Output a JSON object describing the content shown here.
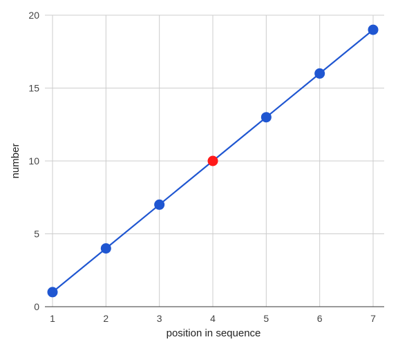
{
  "chart_data": {
    "type": "line",
    "xlabel": "position in sequence",
    "ylabel": "number",
    "x": [
      1,
      2,
      3,
      4,
      5,
      6,
      7
    ],
    "series": [
      {
        "values": [
          1,
          4,
          7,
          10,
          13,
          16,
          19
        ]
      }
    ],
    "xlim": [
      1,
      7
    ],
    "ylim": [
      0,
      20
    ],
    "x_ticks": [
      "1",
      "2",
      "3",
      "4",
      "5",
      "6",
      "7"
    ],
    "y_ticks": [
      "0",
      "5",
      "10",
      "15",
      "20"
    ],
    "grid": true,
    "highlight_index": 3,
    "colors": {
      "line": "#1f56d1",
      "point": "#1f56d1",
      "highlight": "#ff1a1a",
      "grid": "#cccccc"
    }
  }
}
